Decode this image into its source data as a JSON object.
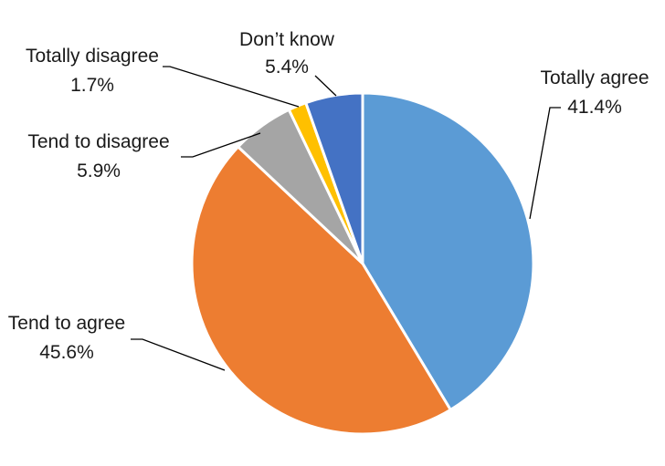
{
  "chart_data": {
    "type": "pie",
    "slices": [
      {
        "label": "Totally agree",
        "value": 41.4,
        "value_label": "41.4%",
        "color": "#5B9BD5"
      },
      {
        "label": "Tend to agree",
        "value": 45.6,
        "value_label": "45.6%",
        "color": "#ED7D31"
      },
      {
        "label": "Tend to disagree",
        "value": 5.9,
        "value_label": "5.9%",
        "color": "#A5A5A5"
      },
      {
        "label": "Totally disagree",
        "value": 1.7,
        "value_label": "1.7%",
        "color": "#FFC000"
      },
      {
        "label": "Don’t know",
        "value": 5.4,
        "value_label": "5.4%",
        "color": "#4472C4"
      }
    ],
    "start": "12 o'clock",
    "direction": "clockwise",
    "legend": "none",
    "labels": "outside with leader lines"
  }
}
